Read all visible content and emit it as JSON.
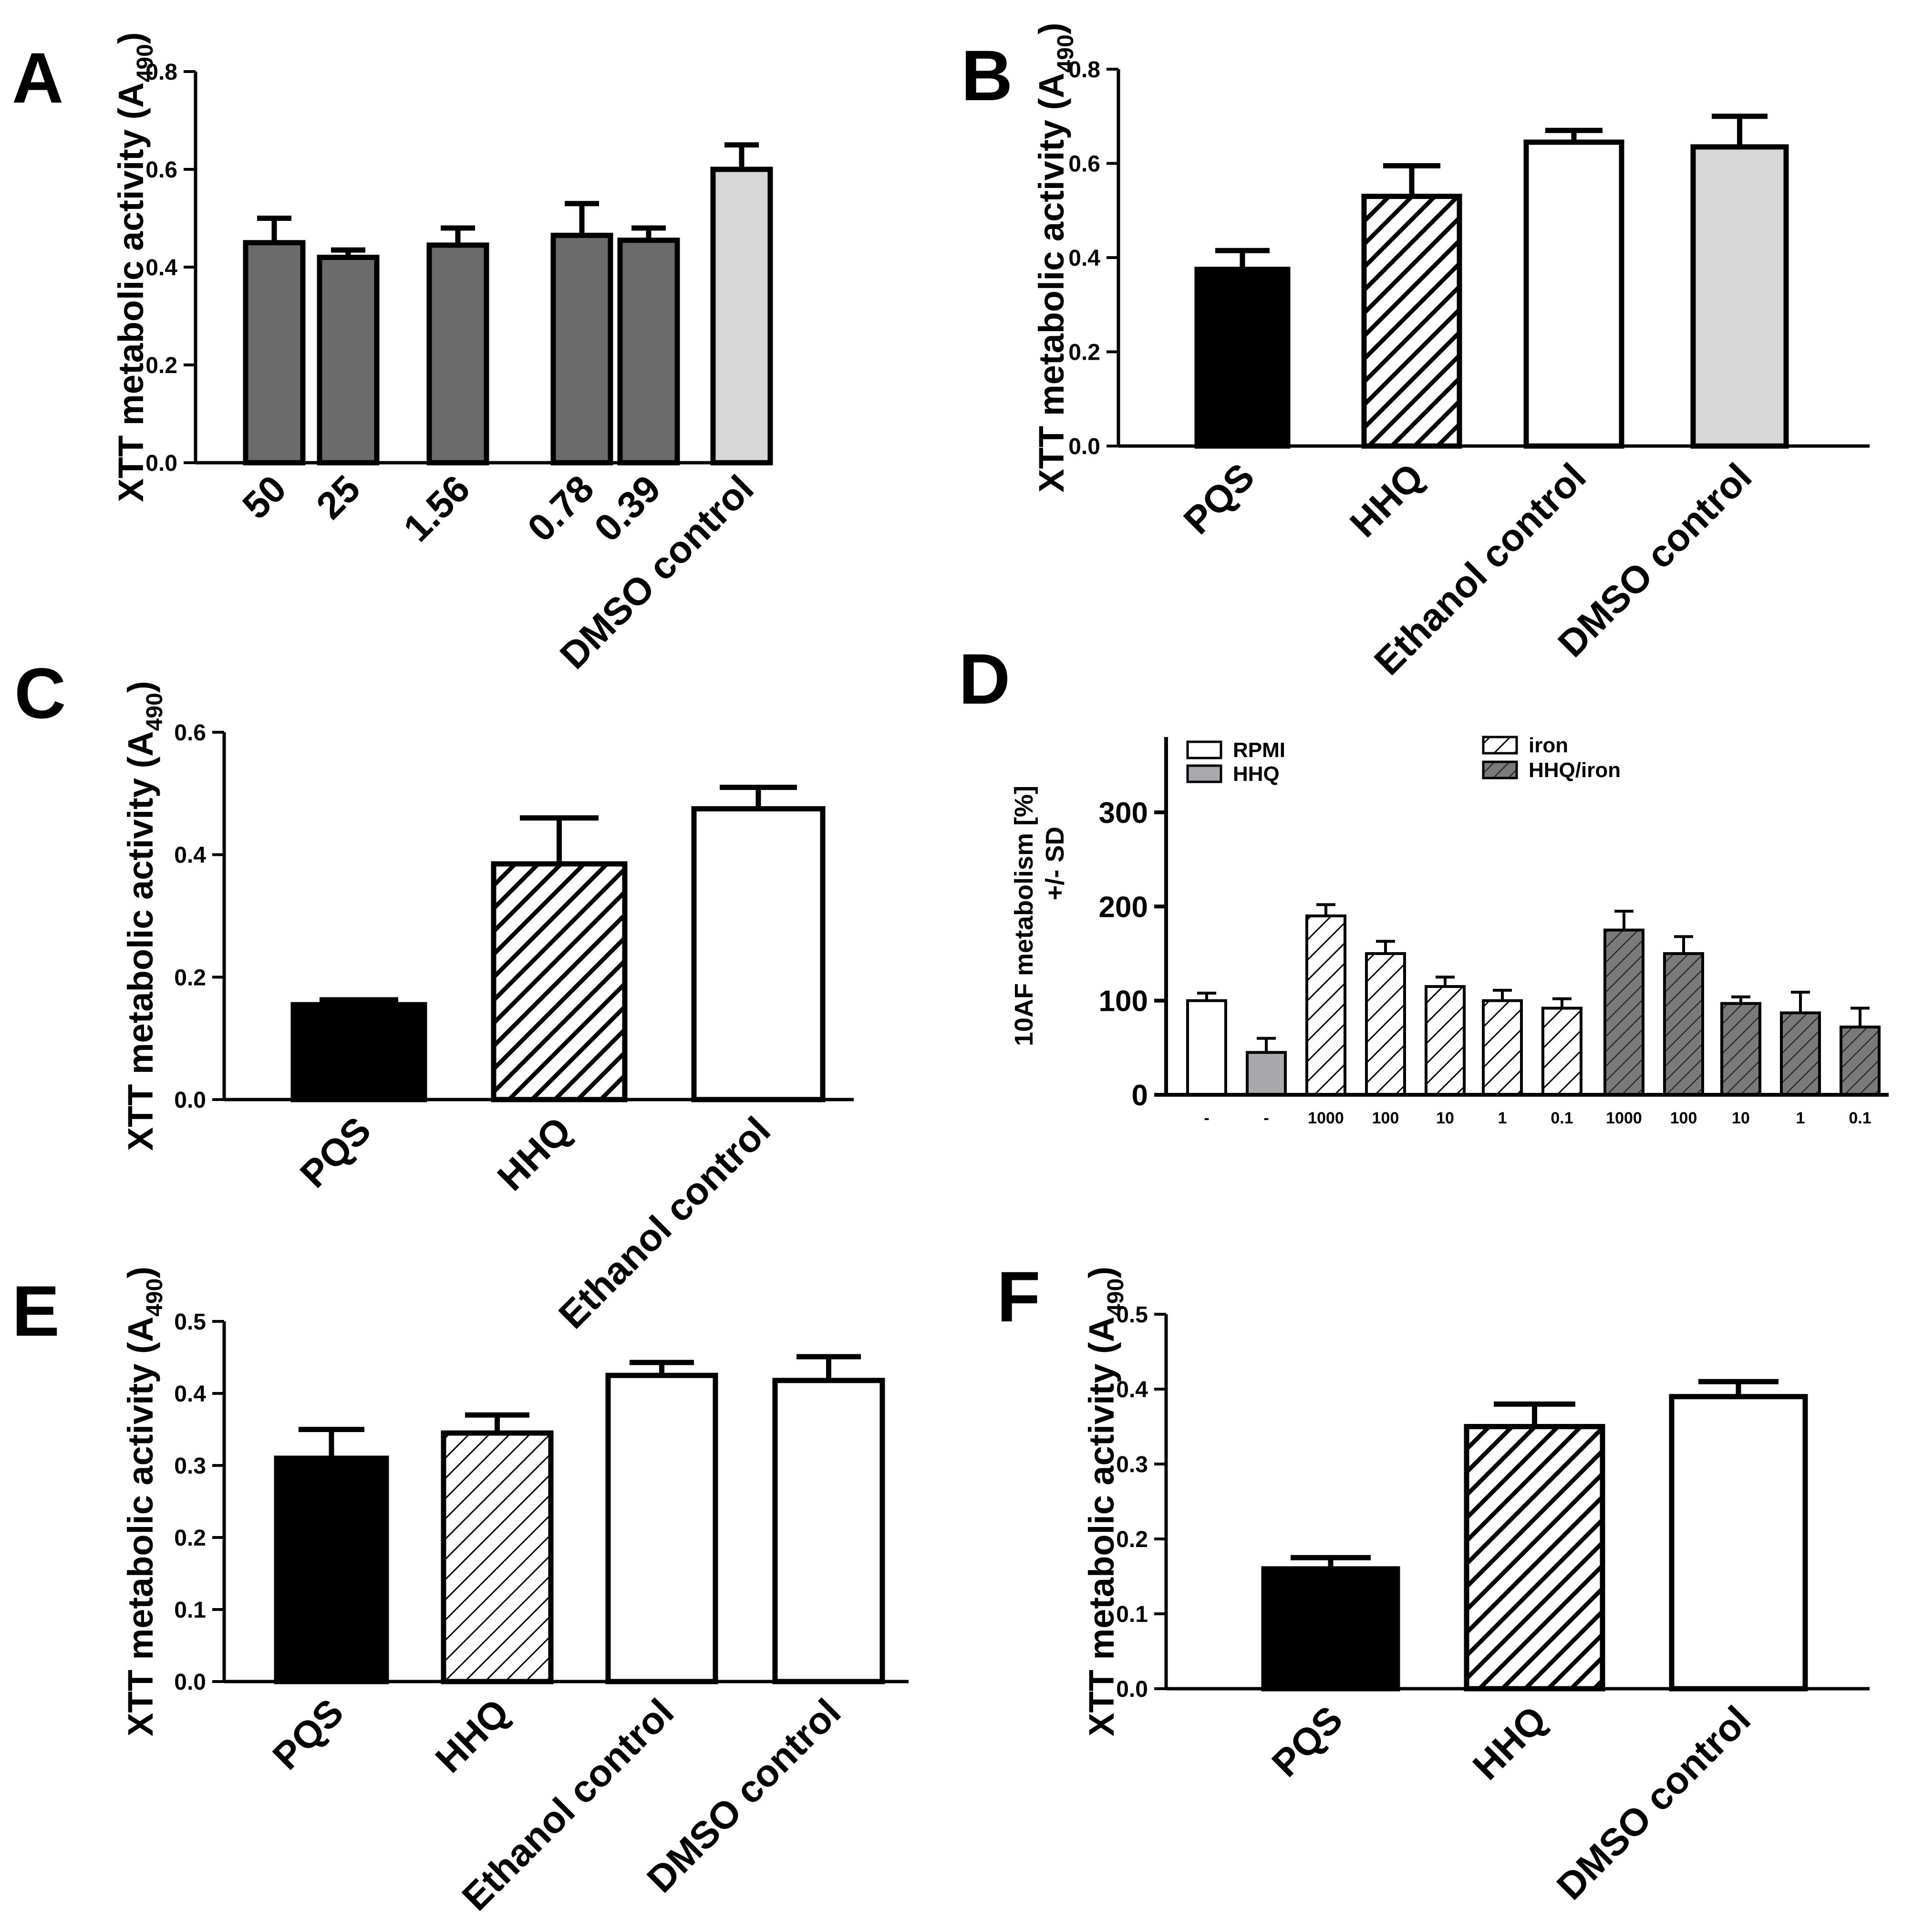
{
  "figure": {
    "panel_labels": [
      "A",
      "B",
      "C",
      "D",
      "E",
      "F"
    ]
  },
  "colors": {
    "black": "#000000",
    "dark_gray": "#6b6b6b",
    "light_gray": "#d7d7d7",
    "white": "#ffffff",
    "mid_gray": "#a9a9ad",
    "hatch_dark_bg": "#7a7a7a"
  },
  "chart_data": [
    {
      "panel": "A",
      "type": "bar",
      "ylabel": "XTT metabolic activity (A",
      "ylabel_sub": "490",
      "ylabel_close": ")",
      "ylim": [
        0,
        0.8
      ],
      "yticks": [
        0.0,
        0.2,
        0.4,
        0.6,
        0.8
      ],
      "ytick_labels": [
        "0.0",
        "0.2",
        "0.4",
        "0.6",
        "0.8"
      ],
      "categories": [
        "50",
        "25",
        "1.56",
        "0.78",
        "0.39",
        "DMSO control"
      ],
      "values": [
        0.45,
        0.42,
        0.445,
        0.465,
        0.455,
        0.6
      ],
      "errors": [
        0.05,
        0.015,
        0.035,
        0.065,
        0.025,
        0.05
      ],
      "fills": [
        "dark",
        "dark",
        "dark",
        "dark",
        "dark",
        "light"
      ]
    },
    {
      "panel": "B",
      "type": "bar",
      "ylabel": "XTT metabolic activity (A",
      "ylabel_sub": "490",
      "ylabel_close": ")",
      "ylim": [
        0,
        0.8
      ],
      "yticks": [
        0.0,
        0.2,
        0.4,
        0.6,
        0.8
      ],
      "ytick_labels": [
        "0.0",
        "0.2",
        "0.4",
        "0.6",
        "0.8"
      ],
      "categories": [
        "PQS",
        "HHQ",
        "Ethanol control",
        "DMSO control"
      ],
      "values": [
        0.375,
        0.53,
        0.645,
        0.635
      ],
      "errors": [
        0.04,
        0.065,
        0.025,
        0.065
      ],
      "fills": [
        "black",
        "hatch",
        "white",
        "light"
      ]
    },
    {
      "panel": "C",
      "type": "bar",
      "ylabel": "XTT metabolic activity (A",
      "ylabel_sub": "490",
      "ylabel_close": ")",
      "ylim": [
        0,
        0.6
      ],
      "yticks": [
        0.0,
        0.2,
        0.4,
        0.6
      ],
      "ytick_labels": [
        "0.0",
        "0.2",
        "0.4",
        "0.6"
      ],
      "categories": [
        "PQS",
        "HHQ",
        "Ethanol control"
      ],
      "values": [
        0.155,
        0.385,
        0.475
      ],
      "errors": [
        0.008,
        0.075,
        0.035
      ],
      "fills": [
        "black",
        "hatch",
        "white"
      ]
    },
    {
      "panel": "D",
      "type": "bar",
      "ylabel_line1": "10AF metabolism [%]",
      "ylabel_line2": "+/- SD",
      "ylim": [
        0,
        380
      ],
      "yticks": [
        0,
        100,
        200,
        300
      ],
      "ytick_labels": [
        "0",
        "100",
        "200",
        "300"
      ],
      "categories": [
        "-",
        "-",
        "1000",
        "100",
        "10",
        "1",
        "0.1",
        "1000",
        "100",
        "10",
        "1",
        "0.1"
      ],
      "values": [
        100,
        45,
        190,
        150,
        115,
        100,
        92,
        175,
        150,
        97,
        87,
        72
      ],
      "errors": [
        8,
        15,
        12,
        13,
        10,
        11,
        10,
        20,
        18,
        7,
        22,
        20
      ],
      "fills": [
        "white",
        "gray",
        "hatch-light",
        "hatch-light",
        "hatch-light",
        "hatch-light",
        "hatch-light",
        "hatch-dark",
        "hatch-dark",
        "hatch-dark",
        "hatch-dark",
        "hatch-dark"
      ],
      "legend": [
        {
          "label": "RPMI",
          "fill": "white"
        },
        {
          "label": "HHQ",
          "fill": "gray"
        },
        {
          "label": "iron",
          "fill": "hatch-light"
        },
        {
          "label": "HHQ/iron",
          "fill": "hatch-dark"
        }
      ]
    },
    {
      "panel": "E",
      "type": "bar",
      "ylabel": "XTT metabolic activity (A",
      "ylabel_sub": "490",
      "ylabel_close": ")",
      "ylim": [
        0,
        0.5
      ],
      "yticks": [
        0.0,
        0.1,
        0.2,
        0.3,
        0.4,
        0.5
      ],
      "ytick_labels": [
        "0.0",
        "0.1",
        "0.2",
        "0.3",
        "0.4",
        "0.5"
      ],
      "categories": [
        "PQS",
        "HHQ",
        "Ethanol control",
        "DMSO control"
      ],
      "values": [
        0.31,
        0.345,
        0.425,
        0.418
      ],
      "errors": [
        0.04,
        0.025,
        0.018,
        0.033
      ],
      "fills": [
        "black",
        "hatch-light",
        "white",
        "white"
      ]
    },
    {
      "panel": "F",
      "type": "bar",
      "ylabel": "XTT metabolic activity (A",
      "ylabel_sub": "490",
      "ylabel_close": ")",
      "ylim": [
        0,
        0.5
      ],
      "yticks": [
        0.0,
        0.1,
        0.2,
        0.3,
        0.4,
        0.5
      ],
      "ytick_labels": [
        "0.0",
        "0.1",
        "0.2",
        "0.3",
        "0.4",
        "0.5"
      ],
      "categories": [
        "PQS",
        "HHQ",
        "DMSO control"
      ],
      "values": [
        0.16,
        0.35,
        0.39
      ],
      "errors": [
        0.015,
        0.03,
        0.02
      ],
      "fills": [
        "black",
        "hatch",
        "white"
      ]
    }
  ]
}
